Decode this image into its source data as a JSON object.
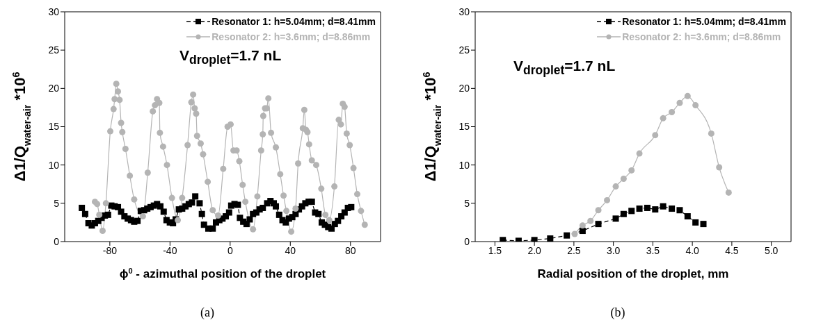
{
  "chart_data": [
    {
      "type": "line",
      "ylabel": "Δ1/Q$_{water-air}$ *10$^{6}$",
      "xlabel": "ϕ$^{0}$ - azimuthal position of the droplet",
      "xlim": [
        -110,
        100
      ],
      "xticks": [
        -80,
        -40,
        0,
        40,
        80
      ],
      "ylim": [
        0,
        30
      ],
      "yticks": [
        0,
        5,
        10,
        15,
        20,
        25,
        30
      ],
      "legend": "top right",
      "annotations": [
        "V$_{droplet}$=1.7 nL",
        "(a)"
      ],
      "series": [
        {
          "name": "Resonator 1: h=5.04mm; d=8.41mm",
          "color": "#000000",
          "marker": "square",
          "line_style": "dashed",
          "x": [
            -98.6,
            -96.4,
            -94.2,
            -92.0,
            -89.9,
            -87.7,
            -85.5,
            -83.3,
            -81.2,
            -79.0,
            -76.8,
            -74.6,
            -72.5,
            -70.3,
            -68.1,
            -65.9,
            -63.8,
            -61.6,
            -59.4,
            -57.2,
            -55.1,
            -52.9,
            -50.7,
            -48.6,
            -46.4,
            -44.2,
            -42.3,
            -40.1,
            -38.0,
            -36.2,
            -34.1,
            -31.9,
            -29.7,
            -27.5,
            -25.4,
            -23.2,
            -20.3,
            -18.8,
            -17.4,
            -14.5,
            -11.6,
            -9.4,
            -7.2,
            -5.1,
            -2.9,
            -0.7,
            0.7,
            2.9,
            5.1,
            6.5,
            8.7,
            10.9,
            13.0,
            15.2,
            17.4,
            19.6,
            21.7,
            24.6,
            26.8,
            29.0,
            30.4,
            32.6,
            34.8,
            37.0,
            39.1,
            41.3,
            43.5,
            45.7,
            47.8,
            50.0,
            52.2,
            54.3,
            56.5,
            58.7,
            60.9,
            63.0,
            65.2,
            67.4,
            69.6,
            71.7,
            73.9,
            76.1,
            78.3,
            80.5
          ],
          "values": [
            4.4,
            3.6,
            2.4,
            2.1,
            2.4,
            2.7,
            3.1,
            3.4,
            3.5,
            4.7,
            4.6,
            4.5,
            3.9,
            3.3,
            3.0,
            2.8,
            2.6,
            2.7,
            4.0,
            4.1,
            4.3,
            4.5,
            4.7,
            4.9,
            4.6,
            3.9,
            2.8,
            2.5,
            2.4,
            2.9,
            4.2,
            4.3,
            4.6,
            4.9,
            5.1,
            5.9,
            5.0,
            3.6,
            2.2,
            1.7,
            1.7,
            2.5,
            2.8,
            3.0,
            3.3,
            3.8,
            4.7,
            4.9,
            4.8,
            3.1,
            2.6,
            2.3,
            2.9,
            3.6,
            3.8,
            4.2,
            4.4,
            5.0,
            5.3,
            5.0,
            4.6,
            3.5,
            2.8,
            2.5,
            3.0,
            3.2,
            3.6,
            4.2,
            4.6,
            5.0,
            5.2,
            5.2,
            3.8,
            3.6,
            2.5,
            2.2,
            1.9,
            1.7,
            2.3,
            2.7,
            3.3,
            3.8,
            4.4,
            4.5
          ]
        },
        {
          "name": "Resonator 2: h=3.6mm; d=8.86mm",
          "color": "#b4b4b4",
          "marker": "circle",
          "line_style": "solid",
          "x": [
            -89.9,
            -88.4,
            -87.0,
            -84.8,
            -82.6,
            -79.7,
            -77.5,
            -76.8,
            -75.7,
            -74.6,
            -73.5,
            -72.5,
            -71.7,
            -69.6,
            -66.7,
            -63.8,
            -58.0,
            -54.8,
            -51.4,
            -50.0,
            -48.6,
            -47.1,
            -46.7,
            -44.6,
            -42.0,
            -38.7,
            -34.8,
            -31.9,
            -28.3,
            -25.8,
            -24.6,
            -23.6,
            -22.6,
            -22.0,
            -19.6,
            -18.0,
            -14.9,
            -11.6,
            -8.0,
            -4.6,
            -1.7,
            0.3,
            2.2,
            4.3,
            6.1,
            8.3,
            10.1,
            15.2,
            18.1,
            20.6,
            21.7,
            22.0,
            23.2,
            24.3,
            25.4,
            27.2,
            30.4,
            33.3,
            35.5,
            37.4,
            40.6,
            43.5,
            45.2,
            48.3,
            49.3,
            50.4,
            51.4,
            52.5,
            54.3,
            57.2,
            60.6,
            63.3,
            65.9,
            69.3,
            72.2,
            73.6,
            74.9,
            76.1,
            77.5,
            79.5,
            82.0,
            84.5,
            87.0,
            89.5
          ],
          "values": [
            5.2,
            4.9,
            3.5,
            1.4,
            5.0,
            14.4,
            17.3,
            18.6,
            20.6,
            19.6,
            18.5,
            15.5,
            14.3,
            12.1,
            8.6,
            5.5,
            3.3,
            9.0,
            17.0,
            17.8,
            18.6,
            18.1,
            14.2,
            12.4,
            10.0,
            5.7,
            2.8,
            5.7,
            12.6,
            18.2,
            19.2,
            17.4,
            16.7,
            13.8,
            12.8,
            11.4,
            7.8,
            4.1,
            3.4,
            9.5,
            15.0,
            15.3,
            11.9,
            11.9,
            10.5,
            7.4,
            5.2,
            1.6,
            5.9,
            11.9,
            14.0,
            16.4,
            17.4,
            17.4,
            18.7,
            14.2,
            12.3,
            8.8,
            6.0,
            4.0,
            1.3,
            4.3,
            10.2,
            14.8,
            17.2,
            14.6,
            14.3,
            12.7,
            10.6,
            10.0,
            6.9,
            3.5,
            2.8,
            7.2,
            15.9,
            15.3,
            18.0,
            17.6,
            14.1,
            12.6,
            9.6,
            6.2,
            4.0,
            2.2
          ]
        }
      ]
    },
    {
      "type": "line",
      "ylabel": "Δ1/Q$_{water-air}$ *10$^{6}$",
      "xlabel": "Radial position of the droplet, mm",
      "xlim": [
        1.25,
        5.25
      ],
      "xticks": [
        1.5,
        {
          "value": 2,
          "label": "2.0"
        },
        2.5,
        {
          "value": 3,
          "label": "3.0"
        },
        3.5,
        {
          "value": 4,
          "label": "4.0"
        },
        4.5,
        {
          "value": 5,
          "label": "5.0"
        }
      ],
      "ylim": [
        0,
        30
      ],
      "yticks": [
        0,
        5,
        10,
        15,
        20,
        25,
        30
      ],
      "legend": "top right",
      "annotations": [
        "V$_{droplet}$=1.7 nL",
        "(b)"
      ],
      "series": [
        {
          "name": "Resonator 1: h=5.04mm; d=8.41mm",
          "color": "#000000",
          "marker": "square",
          "line_style": "dashed",
          "x": [
            1.6,
            1.8,
            2.0,
            2.2,
            2.41,
            2.61,
            2.81,
            3.03,
            3.13,
            3.23,
            3.33,
            3.43,
            3.53,
            3.63,
            3.74,
            3.84,
            3.94,
            4.04,
            4.14
          ],
          "values": [
            0.2,
            0.1,
            0.2,
            0.4,
            0.8,
            1.4,
            2.3,
            3.0,
            3.6,
            4.0,
            4.3,
            4.4,
            4.2,
            4.6,
            4.3,
            4.1,
            3.3,
            2.5,
            2.3
          ]
        },
        {
          "name": "Resonator 2: h=3.6mm; d=8.86mm",
          "color": "#b4b4b4",
          "marker": "circle",
          "line_style": "solid",
          "x": [
            2.51,
            2.61,
            2.71,
            2.81,
            2.92,
            3.03,
            3.13,
            3.23,
            3.33,
            3.53,
            3.63,
            3.74,
            3.84,
            3.94,
            4.04,
            4.24,
            4.34,
            4.46
          ],
          "values": [
            1.0,
            2.1,
            2.7,
            4.1,
            5.4,
            7.2,
            8.2,
            9.3,
            11.5,
            13.9,
            16.1,
            16.9,
            18.1,
            19.0,
            17.8,
            14.1,
            9.7,
            6.4
          ]
        }
      ]
    }
  ]
}
